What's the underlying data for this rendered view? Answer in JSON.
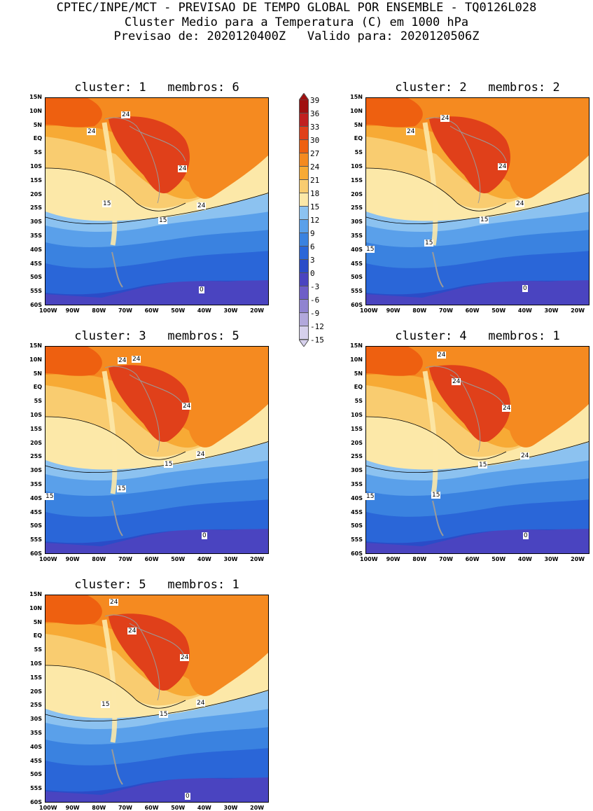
{
  "header": {
    "line1": "CPTEC/INPE/MCT - PREVISAO DE TEMPO GLOBAL POR ENSEMBLE - TQ0126L028",
    "line2": "Cluster Medio para a Temperatura (C) em 1000 hPa",
    "line3": "Previsao de: 2020120400Z   Valido para: 2020120506Z"
  },
  "lat_labels": [
    "15N",
    "10N",
    "5N",
    "EQ",
    "5S",
    "10S",
    "15S",
    "20S",
    "25S",
    "30S",
    "35S",
    "40S",
    "45S",
    "50S",
    "55S",
    "60S"
  ],
  "lon_labels": [
    "100W",
    "90W",
    "80W",
    "70W",
    "60W",
    "50W",
    "40W",
    "30W",
    "20W"
  ],
  "panels": [
    {
      "title": "cluster: 1   membros: 6",
      "labels": [
        {
          "t": "24"
        },
        {
          "t": "24"
        },
        {
          "t": "24"
        },
        {
          "t": "24"
        },
        {
          "t": "15"
        },
        {
          "t": "15"
        },
        {
          "t": "0"
        }
      ]
    },
    {
      "title": "cluster: 2   membros: 2",
      "labels": [
        {
          "t": "24"
        },
        {
          "t": "24"
        },
        {
          "t": "24"
        },
        {
          "t": "24"
        },
        {
          "t": "15"
        },
        {
          "t": "15"
        },
        {
          "t": "15"
        },
        {
          "t": "0"
        }
      ]
    },
    {
      "title": "cluster: 3   membros: 5",
      "labels": [
        {
          "t": "24"
        },
        {
          "t": "24"
        },
        {
          "t": "24"
        },
        {
          "t": "24"
        },
        {
          "t": "15"
        },
        {
          "t": "15"
        },
        {
          "t": "15"
        },
        {
          "t": "0"
        }
      ]
    },
    {
      "title": "cluster: 4   membros: 1",
      "labels": [
        {
          "t": "24"
        },
        {
          "t": "24"
        },
        {
          "t": "24"
        },
        {
          "t": "24"
        },
        {
          "t": "15"
        },
        {
          "t": "15"
        },
        {
          "t": "15"
        },
        {
          "t": "0"
        }
      ]
    },
    {
      "title": "cluster: 5   membros: 1",
      "labels": [
        {
          "t": "24"
        },
        {
          "t": "24"
        },
        {
          "t": "24"
        },
        {
          "t": "24"
        },
        {
          "t": "15"
        },
        {
          "t": "15"
        },
        {
          "t": "0"
        }
      ]
    }
  ],
  "colorbar": {
    "ticks": [
      "39",
      "36",
      "33",
      "30",
      "27",
      "24",
      "21",
      "18",
      "15",
      "12",
      "9",
      "6",
      "3",
      "0",
      "-3",
      "-6",
      "-9",
      "-12",
      "-15"
    ],
    "colors": [
      "#a01010",
      "#c02020",
      "#e0401a",
      "#ee6010",
      "#f58a20",
      "#f7aa35",
      "#f9cc70",
      "#fce8a8",
      "#8cc2f0",
      "#5aa0ea",
      "#3a82e0",
      "#2a66d8",
      "#2a4cc8",
      "#4a44c0",
      "#6e5ec8",
      "#9084d0",
      "#b2a8dc",
      "#d6d0ec"
    ]
  },
  "colors": {
    "c30": "#ee6010",
    "c27": "#f58a20",
    "c24": "#f7aa35",
    "c21": "#f9cc70",
    "c18": "#fce8a8",
    "c12": "#8cc2f0",
    "c9": "#5aa0ea",
    "c6": "#3a82e0",
    "c3": "#2a66d8",
    "c0": "#2a4cc8",
    "cneg": "#4a44c0",
    "hot": "#e0401a",
    "land": "#9a9a9a"
  }
}
